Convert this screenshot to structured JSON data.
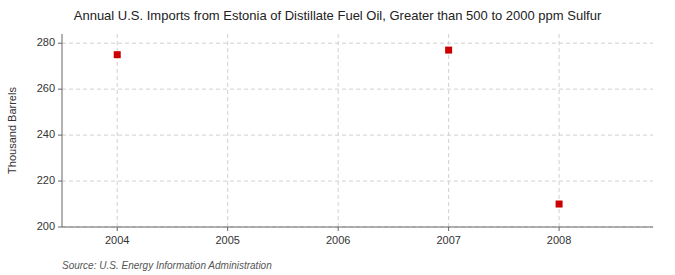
{
  "chart_data": {
    "type": "scatter",
    "title": "Annual U.S. Imports from Estonia of Distillate Fuel Oil, Greater than 500 to 2000 ppm Sulfur",
    "y_label": "Thousand Barrels",
    "source": "Source: U.S. Energy Information Administration",
    "x": [
      2004,
      2007,
      2008
    ],
    "values": [
      275,
      277,
      210
    ],
    "color": "#CC0000",
    "marker": "square",
    "xlim": [
      2003.5,
      2008.85
    ],
    "ylim": [
      200,
      284
    ],
    "xticks": [
      2004,
      2005,
      2006,
      2007,
      2008
    ],
    "yticks": [
      200,
      220,
      240,
      260,
      280
    ],
    "grid": true
  }
}
